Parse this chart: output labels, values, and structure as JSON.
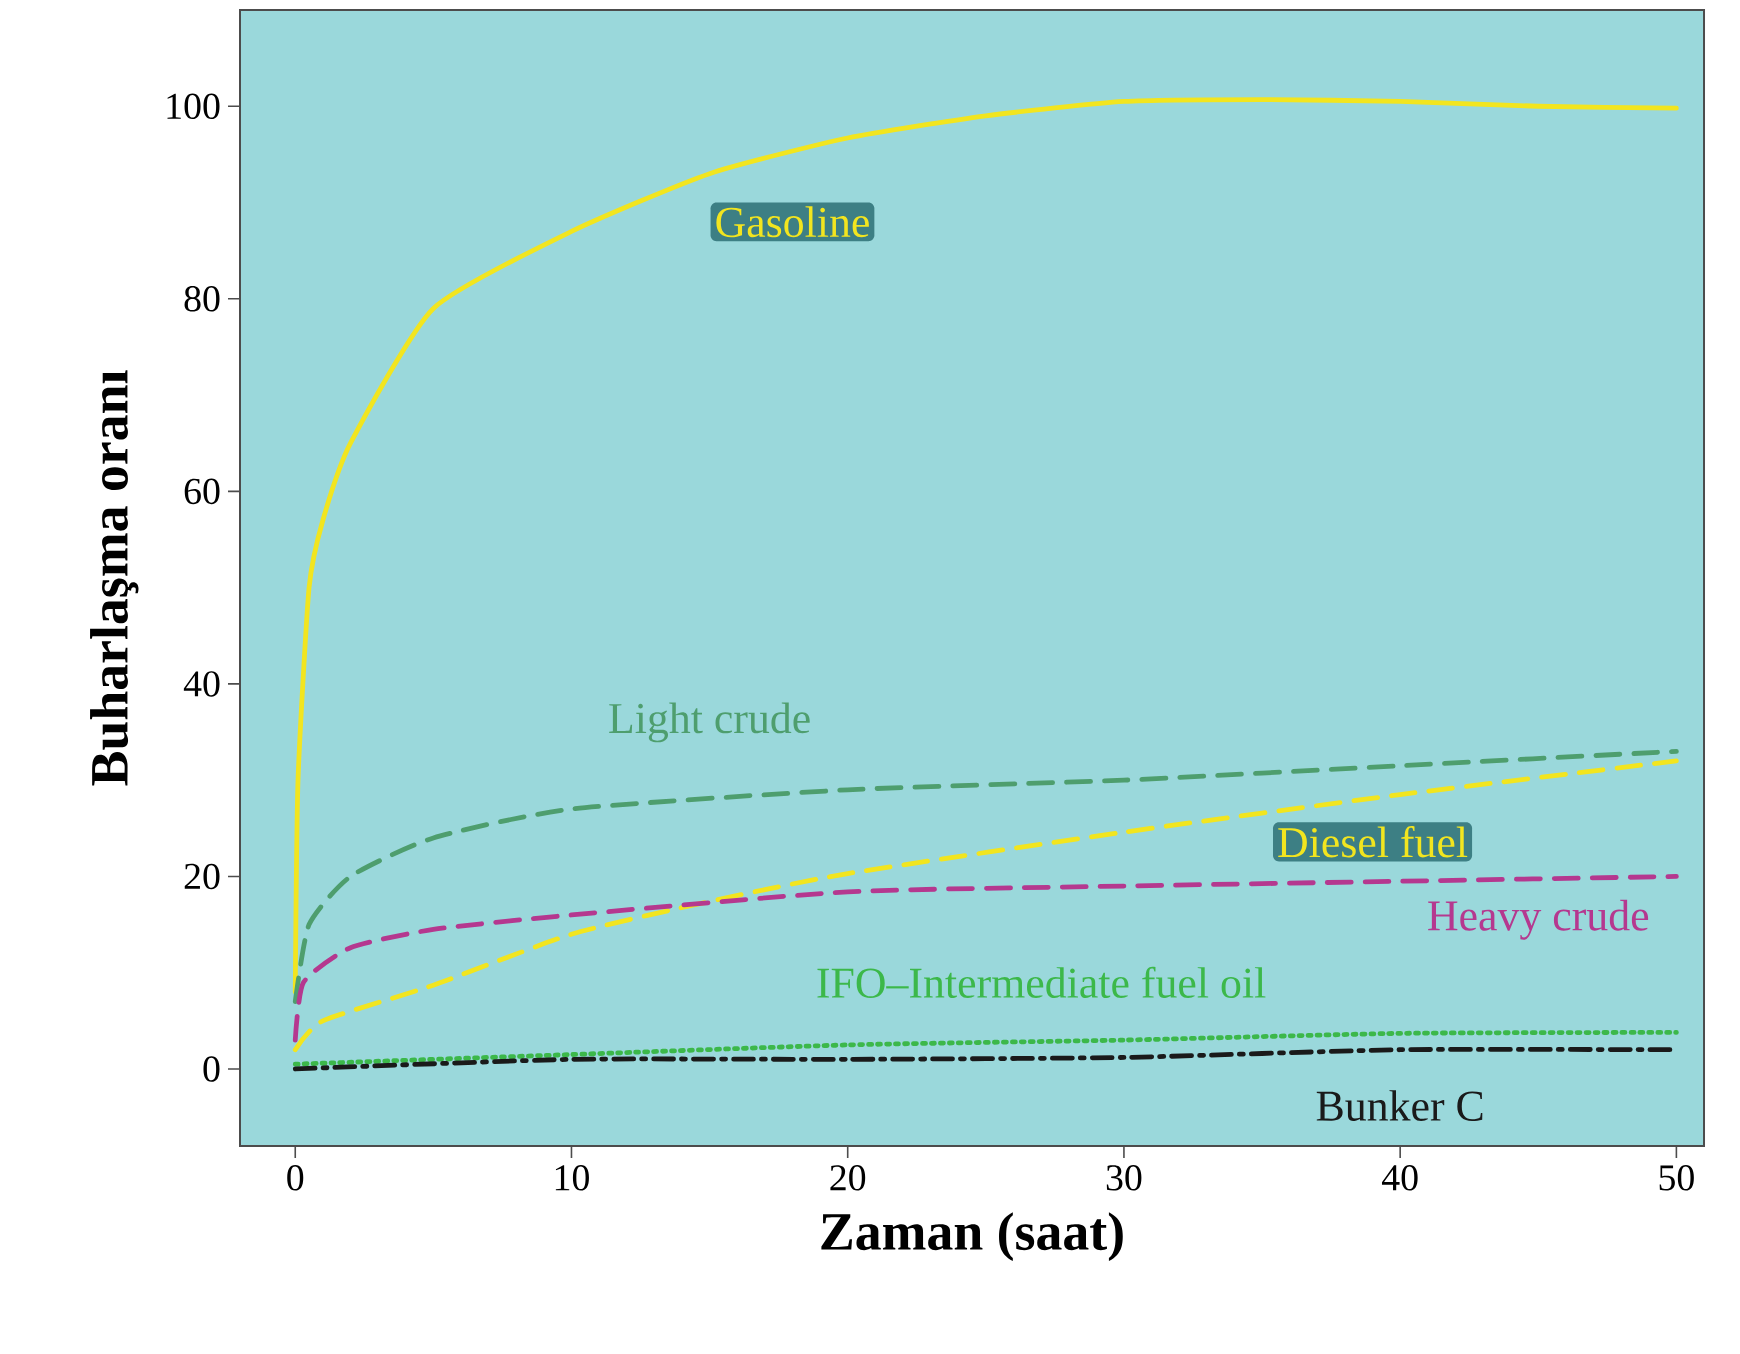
{
  "chart_data": {
    "type": "line",
    "xlabel": "Zaman (saat)",
    "ylabel": "Buharlaşma oranı",
    "xlim": [
      -2,
      51
    ],
    "ylim": [
      -8,
      110
    ],
    "xticks": [
      0,
      10,
      20,
      30,
      40,
      50
    ],
    "yticks": [
      0,
      20,
      40,
      60,
      80,
      100
    ],
    "series": [
      {
        "name": "Gasoline",
        "color": "#f2e51f",
        "line_style": "solid",
        "x": [
          0,
          0.1,
          0.5,
          1,
          2,
          5,
          10,
          15,
          20,
          25,
          30,
          35,
          40,
          45,
          50
        ],
        "values": [
          8,
          30,
          50,
          57,
          65,
          79,
          87,
          93,
          96.7,
          99,
          100.5,
          100.7,
          100.5,
          100,
          99.8
        ]
      },
      {
        "name": "Light crude",
        "color": "#4e9e6e",
        "line_style": "dashed",
        "x": [
          0,
          0.5,
          2,
          5,
          10,
          20,
          30,
          40,
          50
        ],
        "values": [
          7,
          15,
          20,
          24,
          27,
          29,
          30,
          31.5,
          33
        ]
      },
      {
        "name": "Diesel fuel",
        "color": "#f2e51f",
        "line_style": "dashed",
        "x": [
          0,
          1,
          5,
          10,
          15,
          20,
          30,
          40,
          50
        ],
        "values": [
          2,
          5,
          8.7,
          14,
          17.4,
          20.3,
          24.6,
          28.5,
          32
        ]
      },
      {
        "name": "Heavy crude",
        "color": "#b5388f",
        "line_style": "dashed",
        "x": [
          0,
          0.3,
          2,
          5,
          10,
          20,
          30,
          40,
          50
        ],
        "values": [
          3,
          9,
          12.6,
          14.5,
          16,
          18.4,
          19,
          19.5,
          20
        ]
      },
      {
        "name": "IFO–Intermediate fuel oil",
        "color": "#3cb84a",
        "line_style": "dotted",
        "x": [
          0,
          10,
          20,
          30,
          40,
          50
        ],
        "values": [
          0.5,
          1.5,
          2.5,
          3,
          3.7,
          3.8
        ]
      },
      {
        "name": "Bunker C",
        "color": "#1a1a1a",
        "line_style": "dashdot",
        "x": [
          0,
          10,
          20,
          30,
          40,
          50
        ],
        "values": [
          0,
          1,
          1,
          1.2,
          2,
          2
        ]
      }
    ]
  }
}
